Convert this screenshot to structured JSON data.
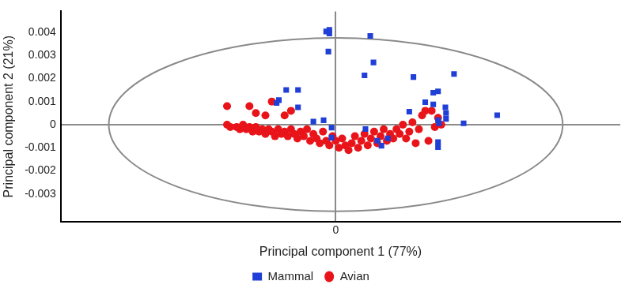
{
  "chart_data": {
    "type": "scatter",
    "x_label": "Principal component 1 (77%)",
    "y_label": "Principal component 2 (21%)",
    "xlim": [
      -0.0086,
      0.0089
    ],
    "xticks": [
      0
    ],
    "ylim": [
      -0.0042,
      0.0049
    ],
    "yticks": [
      -0.003,
      -0.002,
      -0.001,
      0,
      0.001,
      0.002,
      0.003,
      0.004
    ],
    "legend": "bottom",
    "ellipse": {
      "center": [
        0,
        0
      ],
      "x_radius": 0.0071,
      "y_radius": 0.00375
    },
    "series": [
      {
        "name": "Mammal",
        "color": "#1f3fd6",
        "marker": "square",
        "x": [
          -0.0003,
          -0.0002,
          -0.0002,
          -0.00023,
          0.00108,
          0.00118,
          0.0009,
          0.00243,
          0.0037,
          0.0023,
          0.00305,
          0.0028,
          0.0032,
          0.00305,
          0.00343,
          0.00345,
          0.00345,
          0.0032,
          0.00323,
          0.004,
          0.00505,
          0.0032,
          0.0032,
          -0.00118,
          -0.00155,
          -0.00118,
          -0.00178,
          -0.00185,
          -0.0007,
          -0.00038,
          -0.00013,
          0.00093,
          0.0013,
          0.00143,
          0.00163,
          -0.00013
        ],
        "y": [
          0.00403,
          0.0041,
          0.00394,
          0.00316,
          0.00384,
          0.00269,
          0.00213,
          0.00206,
          0.00219,
          0.00056,
          0.00088,
          0.00097,
          0.00144,
          0.00138,
          0.00075,
          0.0005,
          0.00025,
          0.00019,
          6e-05,
          6e-05,
          0.00041,
          -0.00075,
          -0.00097,
          0.0015,
          0.0015,
          0.00075,
          0.00106,
          0.00094,
          0.00013,
          0.00019,
          -0.00013,
          -0.00019,
          -0.00069,
          -0.00091,
          -0.00059,
          -0.00056
        ]
      },
      {
        "name": "Avian",
        "color": "#e8141a",
        "marker": "circle",
        "x": [
          -0.0034,
          -0.0034,
          -0.0033,
          -0.0031,
          -0.003,
          -0.0029,
          -0.0028,
          -0.0027,
          -0.0027,
          -0.0026,
          -0.0025,
          -0.0025,
          -0.0024,
          -0.0023,
          -0.0022,
          -0.0022,
          -0.0021,
          -0.002,
          -0.002,
          -0.0019,
          -0.0018,
          -0.0017,
          -0.0016,
          -0.0016,
          -0.0015,
          -0.0014,
          -0.0014,
          -0.0013,
          -0.0012,
          -0.0011,
          -0.001,
          -0.0009,
          -0.0008,
          -0.0007,
          -0.0006,
          -0.0005,
          -0.0004,
          -0.0003,
          -0.0002,
          -0.0001,
          0,
          0.0001,
          0.0002,
          0.0003,
          0.0004,
          0.0005,
          0.0006,
          0.0007,
          0.0008,
          0.0009,
          0.001,
          0.0011,
          0.0012,
          0.0013,
          0.0014,
          0.0015,
          0.0016,
          0.0017,
          0.0018,
          0.0019,
          0.002,
          0.0021,
          0.0022,
          0.0023,
          0.0024,
          0.0025,
          0.0026,
          0.0027,
          0.0028,
          0.0029,
          0.003,
          0.0031,
          0.0032,
          0.0033
        ],
        "y": [
          0.0008,
          0,
          -0.0001,
          -0.0001,
          -0.0002,
          0,
          -0.0002,
          0.0008,
          -0.0001,
          -0.0003,
          0.0005,
          -0.0001,
          -0.0003,
          -0.0002,
          0.0004,
          -0.0004,
          -0.0002,
          0.001,
          -0.0003,
          -0.0005,
          -0.0002,
          -0.0004,
          0.0004,
          -0.0003,
          -0.0005,
          0.0006,
          -0.0002,
          -0.0004,
          -0.0006,
          -0.0003,
          -0.0005,
          -0.0002,
          -0.0007,
          -0.0004,
          -0.0006,
          -0.0008,
          -0.0003,
          -0.0007,
          -0.0009,
          -0.0005,
          -0.0007,
          -0.001,
          -0.0006,
          -0.0009,
          -0.0011,
          -0.0008,
          -0.0005,
          -0.001,
          -0.0007,
          -0.0004,
          -0.0009,
          -0.0006,
          -0.0003,
          -0.0008,
          -0.0005,
          -0.0002,
          -0.0007,
          -0.0004,
          -0.0006,
          -0.0002,
          -0.0004,
          0,
          -0.0006,
          -0.0003,
          0.0001,
          -0.0008,
          -0.0002,
          0.0004,
          0.0006,
          -0.0007,
          0.0006,
          -0.0001,
          0.0003,
          0
        ]
      }
    ]
  }
}
